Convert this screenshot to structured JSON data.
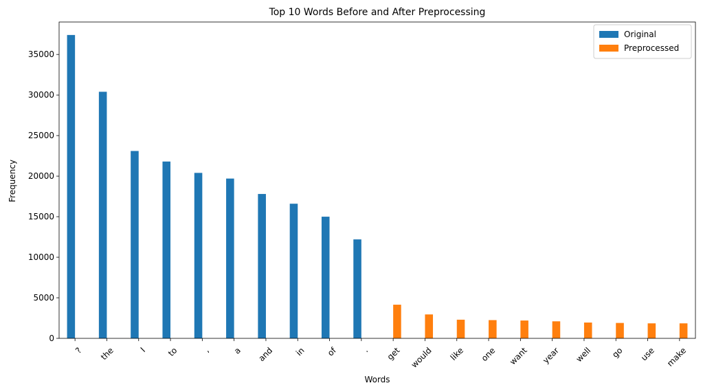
{
  "chart_data": {
    "type": "bar",
    "title": "Top 10 Words Before and After Preprocessing",
    "xlabel": "Words",
    "ylabel": "Frequency",
    "categories": [
      "?",
      "the",
      "I",
      "to",
      ",",
      "a",
      "and",
      "in",
      "of",
      ".",
      "get",
      "would",
      "like",
      "one",
      "want",
      "year",
      "well",
      "go",
      "use",
      "make"
    ],
    "series": [
      {
        "name": "Original",
        "color": "#1f77b4",
        "values": [
          37400,
          30400,
          23100,
          21800,
          20400,
          19700,
          17800,
          16600,
          15000,
          12200,
          0,
          0,
          0,
          0,
          0,
          0,
          0,
          0,
          0,
          0
        ]
      },
      {
        "name": "Preprocessed",
        "color": "#ff7f0e",
        "values": [
          0,
          0,
          0,
          0,
          0,
          0,
          0,
          0,
          0,
          0,
          4150,
          2950,
          2300,
          2250,
          2200,
          2100,
          1950,
          1900,
          1850,
          1850
        ]
      }
    ],
    "ylim": [
      0,
      39000
    ],
    "yticks": [
      0,
      5000,
      10000,
      15000,
      20000,
      25000,
      30000,
      35000
    ],
    "legend_position": "top-right",
    "grid": false
  }
}
